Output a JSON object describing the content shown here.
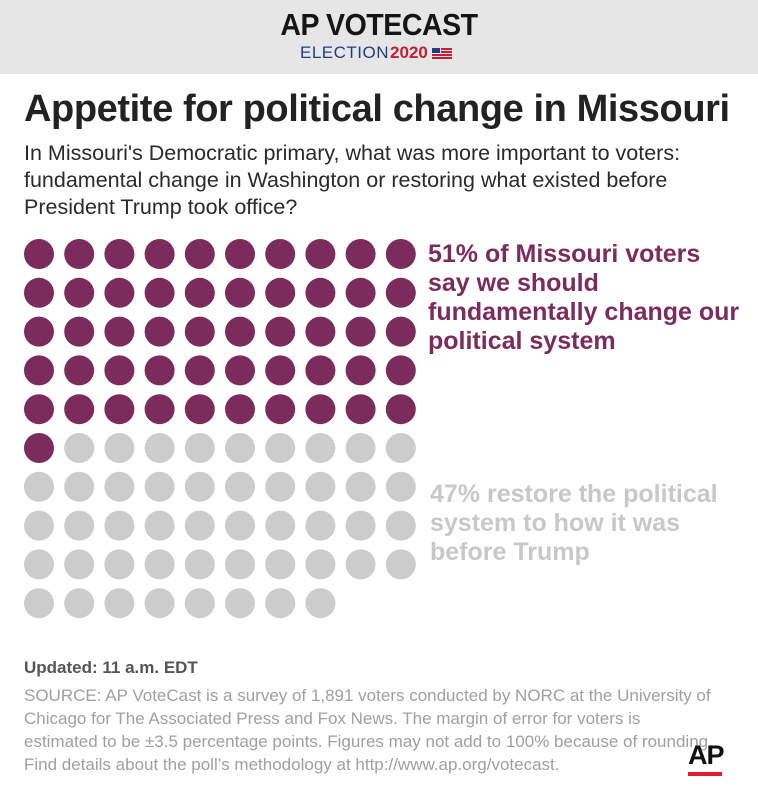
{
  "header": {
    "brand_top": "AP VOTECAST",
    "brand_election": "ELECTION",
    "brand_year": "2020",
    "flag_icon": "us-flag-icon"
  },
  "title": "Appetite for political change in Missouri",
  "subtitle": "In Missouri's Democratic primary, what was more important to voters: fundamental change in Washington or restoring what existed before President Trump took office?",
  "chart_data": {
    "type": "waffle",
    "total": 100,
    "columns": 10,
    "series": [
      {
        "name": "51% of Missouri voters say we should fundamentally change our political system",
        "value": 51,
        "color": "#7b2c5d"
      },
      {
        "name": "47% restore the political system to how it was before Trump",
        "value": 47,
        "color": "#cccccc"
      }
    ]
  },
  "footer": {
    "updated": "Updated: 11 a.m. EDT",
    "source": "SOURCE: AP VoteCast is a survey of 1,891 voters conducted by NORC at the University of Chicago for The Associated Press and Fox News. The margin of error for voters is estimated to be ±3.5 percentage points. Figures may not add to 100% because of rounding. Find details about the poll’s methodology at http://www.ap.org/votecast.",
    "logo_text": "AP",
    "logo_accent": "#e01e2e"
  }
}
